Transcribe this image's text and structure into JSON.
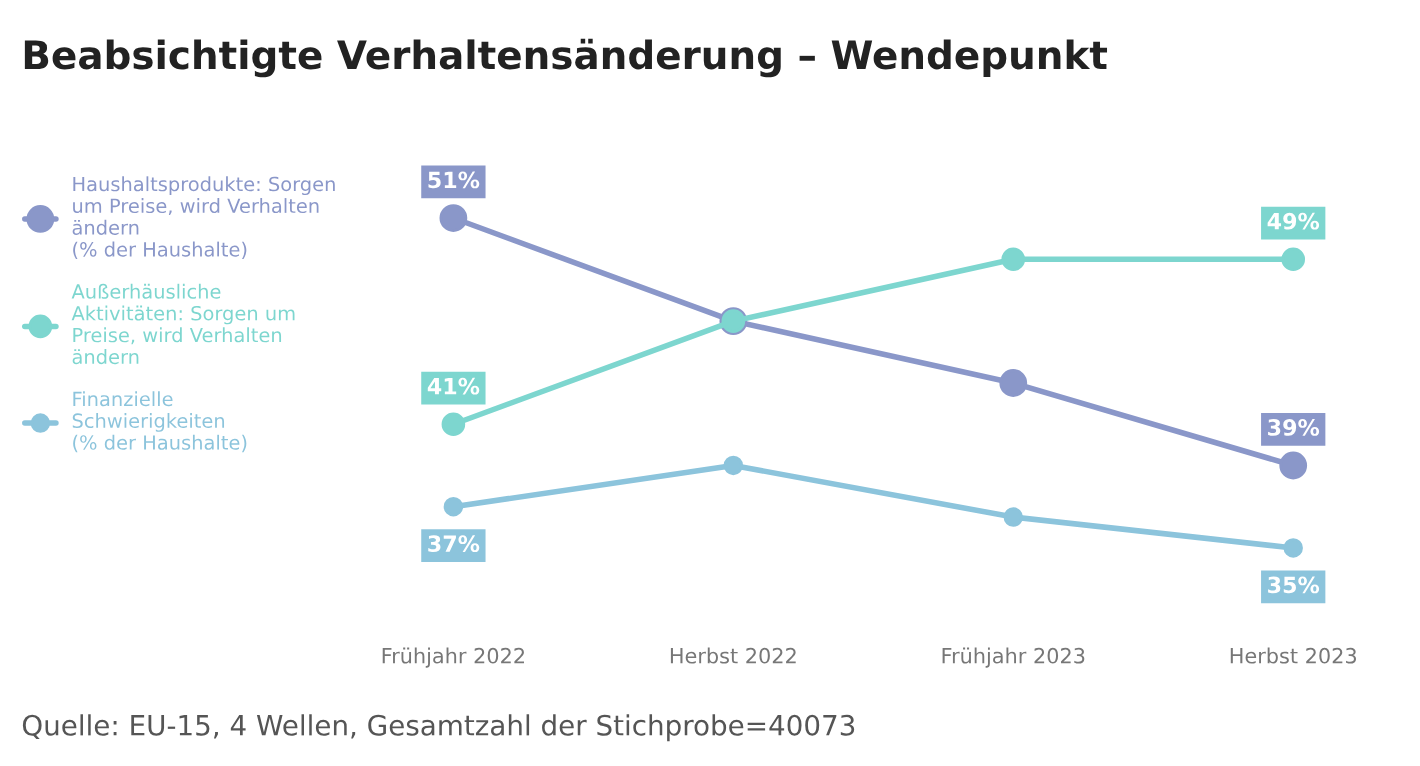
{
  "chart_data": {
    "type": "line",
    "title": "Beabsichtigte Verhaltensänderung – Wendepunkt",
    "categories": [
      "Frühjahr 2022",
      "Herbst 2022",
      "Frühjahr 2023",
      "Herbst 2023"
    ],
    "series": [
      {
        "name": "Haushaltsprodukte: Sorgen\num Preise, wird Verhalten\nändern\n(% der Haushalte)",
        "color": "#8a97c9",
        "values": [
          51,
          46,
          43,
          39
        ],
        "value_labels": [
          "51%",
          null,
          null,
          "39%"
        ]
      },
      {
        "name": "Außerhäusliche\nAktivitäten: Sorgen um\nPreise, wird Verhalten\nändern",
        "color": "#7dd6cf",
        "values": [
          41,
          46,
          49,
          49
        ],
        "value_labels": [
          "41%",
          null,
          null,
          "49%"
        ]
      },
      {
        "name": "Finanzielle\nSchwierigkeiten\n(% der Haushalte)",
        "color": "#8cc4dc",
        "values": [
          37,
          39,
          36.5,
          35
        ],
        "value_labels": [
          "37%",
          null,
          null,
          "35%"
        ]
      }
    ],
    "marker": "circle",
    "line_style": "solid",
    "legend": "left",
    "grid": false,
    "annotations": [
      "Quelle: EU-15, 4 Wellen, Gesamtzahl der Stichprobe=40073"
    ]
  }
}
